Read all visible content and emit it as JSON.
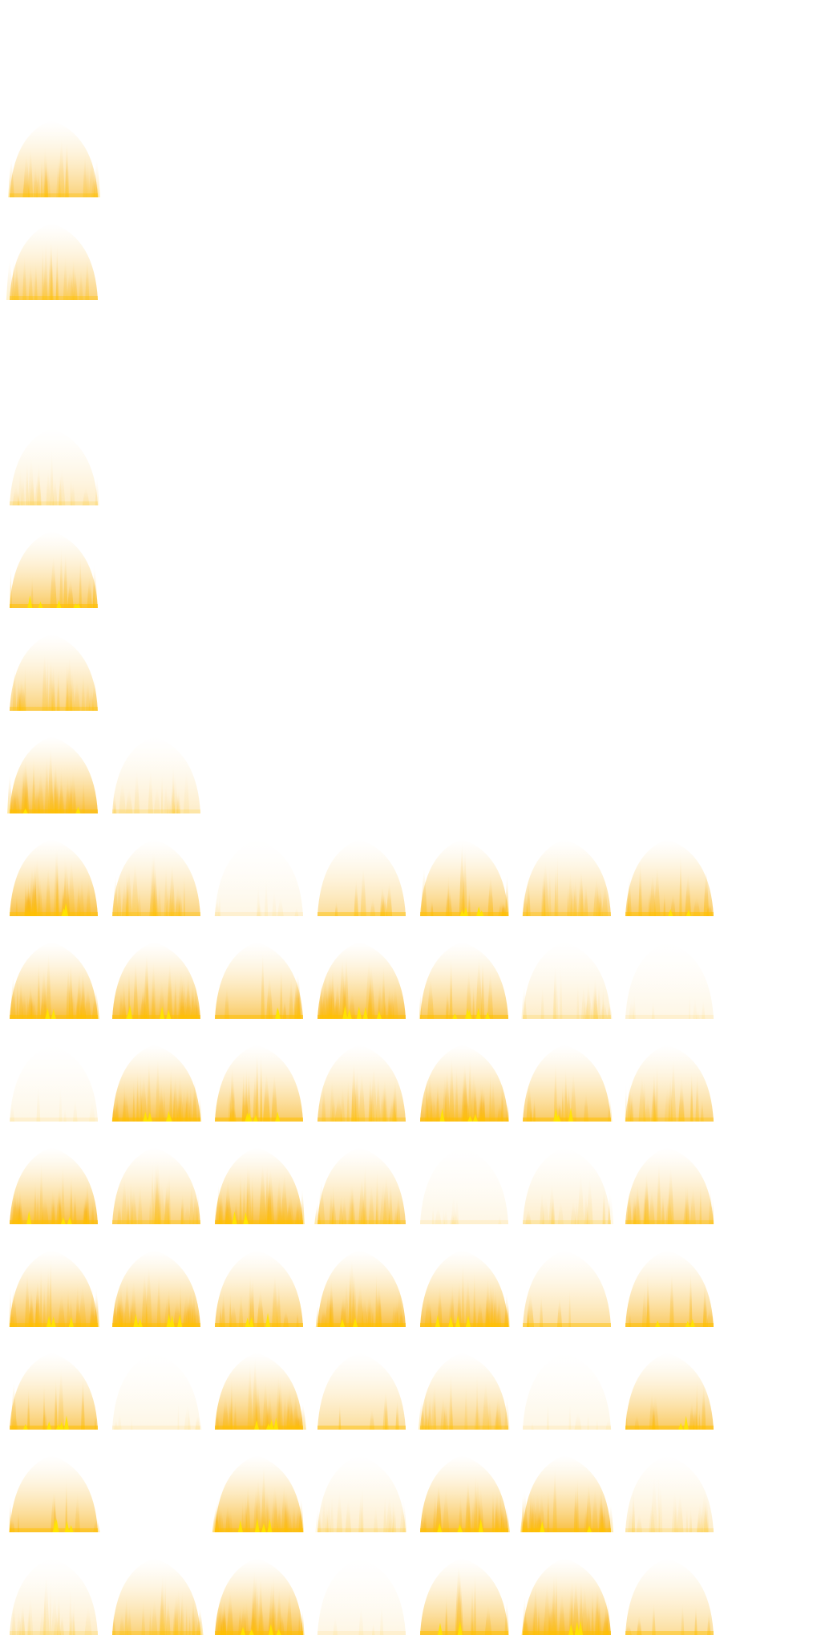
{
  "sheet": {
    "title": "",
    "columns": 8,
    "rows": 16,
    "colors": {
      "background": "#ffffff",
      "flame_core": "#ffe600",
      "flame_hot": "#ffc000",
      "flame_mid": "#f7b21a",
      "flame_edge": "#fde6b4"
    },
    "frames": [
      {
        "row": 1,
        "col": 0,
        "style": "soft"
      },
      {
        "row": 2,
        "col": 0,
        "style": "soft"
      },
      {
        "row": 4,
        "col": 0,
        "style": "faint"
      },
      {
        "row": 5,
        "col": 0,
        "style": "spiky"
      },
      {
        "row": 6,
        "col": 0,
        "style": "soft"
      },
      {
        "row": 7,
        "col": 0,
        "style": "dense"
      },
      {
        "row": 7,
        "col": 1,
        "style": "faint"
      },
      {
        "row": 8,
        "col": 0,
        "style": "dense"
      },
      {
        "row": 8,
        "col": 1,
        "style": "soft"
      },
      {
        "row": 8,
        "col": 2,
        "style": "ghost"
      },
      {
        "row": 8,
        "col": 3,
        "style": "sparse"
      },
      {
        "row": 8,
        "col": 4,
        "style": "spiky"
      },
      {
        "row": 8,
        "col": 5,
        "style": "soft"
      },
      {
        "row": 8,
        "col": 6,
        "style": "spiky"
      },
      {
        "row": 9,
        "col": 0,
        "style": "dense"
      },
      {
        "row": 9,
        "col": 1,
        "style": "dense"
      },
      {
        "row": 9,
        "col": 2,
        "style": "spiky"
      },
      {
        "row": 9,
        "col": 3,
        "style": "dense"
      },
      {
        "row": 9,
        "col": 4,
        "style": "spiky"
      },
      {
        "row": 9,
        "col": 5,
        "style": "faint"
      },
      {
        "row": 9,
        "col": 6,
        "style": "ghost"
      },
      {
        "row": 10,
        "col": 0,
        "style": "ghost"
      },
      {
        "row": 10,
        "col": 1,
        "style": "dense"
      },
      {
        "row": 10,
        "col": 2,
        "style": "spiky"
      },
      {
        "row": 10,
        "col": 3,
        "style": "soft"
      },
      {
        "row": 10,
        "col": 4,
        "style": "dense"
      },
      {
        "row": 10,
        "col": 5,
        "style": "spiky"
      },
      {
        "row": 10,
        "col": 6,
        "style": "soft"
      },
      {
        "row": 11,
        "col": 0,
        "style": "dense"
      },
      {
        "row": 11,
        "col": 1,
        "style": "soft"
      },
      {
        "row": 11,
        "col": 2,
        "style": "dense"
      },
      {
        "row": 11,
        "col": 3,
        "style": "soft"
      },
      {
        "row": 11,
        "col": 4,
        "style": "ghost"
      },
      {
        "row": 11,
        "col": 5,
        "style": "faint"
      },
      {
        "row": 11,
        "col": 6,
        "style": "soft"
      },
      {
        "row": 12,
        "col": 0,
        "style": "dense"
      },
      {
        "row": 12,
        "col": 1,
        "style": "dense"
      },
      {
        "row": 12,
        "col": 2,
        "style": "spiky"
      },
      {
        "row": 12,
        "col": 3,
        "style": "dense"
      },
      {
        "row": 12,
        "col": 4,
        "style": "dense"
      },
      {
        "row": 12,
        "col": 5,
        "style": "sparse"
      },
      {
        "row": 12,
        "col": 6,
        "style": "spiky"
      },
      {
        "row": 13,
        "col": 0,
        "style": "spiky"
      },
      {
        "row": 13,
        "col": 1,
        "style": "ghost"
      },
      {
        "row": 13,
        "col": 2,
        "style": "dense"
      },
      {
        "row": 13,
        "col": 3,
        "style": "sparse"
      },
      {
        "row": 13,
        "col": 4,
        "style": "soft"
      },
      {
        "row": 13,
        "col": 5,
        "style": "ghost"
      },
      {
        "row": 13,
        "col": 6,
        "style": "spiky"
      },
      {
        "row": 14,
        "col": 0,
        "style": "spiky"
      },
      {
        "row": 14,
        "col": 2,
        "style": "dense"
      },
      {
        "row": 14,
        "col": 3,
        "style": "faint"
      },
      {
        "row": 14,
        "col": 4,
        "style": "dense"
      },
      {
        "row": 14,
        "col": 5,
        "style": "dense"
      },
      {
        "row": 14,
        "col": 6,
        "style": "faint"
      },
      {
        "row": 15,
        "col": 0,
        "style": "faint"
      },
      {
        "row": 15,
        "col": 1,
        "style": "soft"
      },
      {
        "row": 15,
        "col": 2,
        "style": "dense"
      },
      {
        "row": 15,
        "col": 3,
        "style": "ghost"
      },
      {
        "row": 15,
        "col": 4,
        "style": "spiky"
      },
      {
        "row": 15,
        "col": 5,
        "style": "dense"
      },
      {
        "row": 15,
        "col": 6,
        "style": "sparse"
      }
    ]
  }
}
